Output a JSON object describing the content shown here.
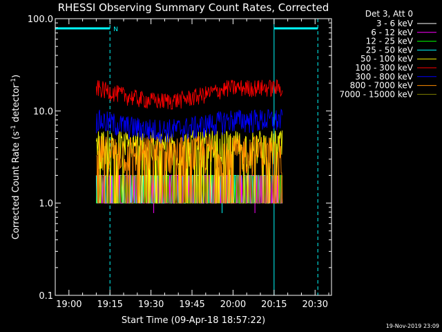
{
  "chart_data": {
    "type": "line",
    "title": "RHESSI Observing Summary Count Rates, Corrected",
    "xlabel": "Start Time (09-Apr-18 18:57:22)",
    "ylabel_main": "Corrected Count Rate (s",
    "ylabel_sup1": "-1",
    "ylabel_mid": " detector",
    "ylabel_sup2": "-1",
    "ylabel_end": ")",
    "yscale": "log",
    "ylim": [
      0.1,
      100.0
    ],
    "xlim": [
      "18:55",
      "20:36"
    ],
    "x_tick_labels": [
      "19:00",
      "19:15",
      "19:30",
      "19:45",
      "20:00",
      "20:15",
      "20:30"
    ],
    "y_tick_labels": [
      "0.1",
      "1.0",
      "10.0",
      "100.0"
    ],
    "legend_title": "Det 3, Att 0",
    "legend_position": "top-right",
    "series": [
      {
        "name": "3 - 6 keV",
        "color": "#ffffff",
        "typical": 1.3,
        "max": 2
      },
      {
        "name": "6 - 12 keV",
        "color": "#ff00ff",
        "typical": 1.0,
        "max": 2
      },
      {
        "name": "12 - 25 keV",
        "color": "#00ff00",
        "typical": 1.2,
        "max": 2
      },
      {
        "name": "25 - 50 keV",
        "color": "#00ffff",
        "typical": 1.0,
        "max": 2
      },
      {
        "name": "50 - 100 keV",
        "color": "#ffff00",
        "typical": 4.0,
        "max": 9
      },
      {
        "name": "100 - 300 keV",
        "color": "#ff0000",
        "typical": 14.0,
        "max": 24
      },
      {
        "name": "300 - 800 keV",
        "color": "#0000ff",
        "typical": 7.0,
        "max": 12
      },
      {
        "name": "800 - 7000 keV",
        "color": "#ff8c00",
        "typical": 3.5,
        "max": 7
      },
      {
        "name": "7000 - 15000 keV",
        "color": "#808000",
        "typical": 1.0,
        "max": 2
      }
    ],
    "data_range": [
      "19:10",
      "20:18"
    ],
    "night_bars": [
      [
        "18:55",
        "19:15"
      ],
      [
        "20:15",
        "20:31"
      ]
    ],
    "saa_flag": "N",
    "vlines_solid": [
      "18:55",
      "20:15"
    ],
    "vlines_dashed": [
      "19:15",
      "20:31"
    ]
  },
  "footer": {
    "timestamp": "19-Nov-2019 23:09"
  }
}
